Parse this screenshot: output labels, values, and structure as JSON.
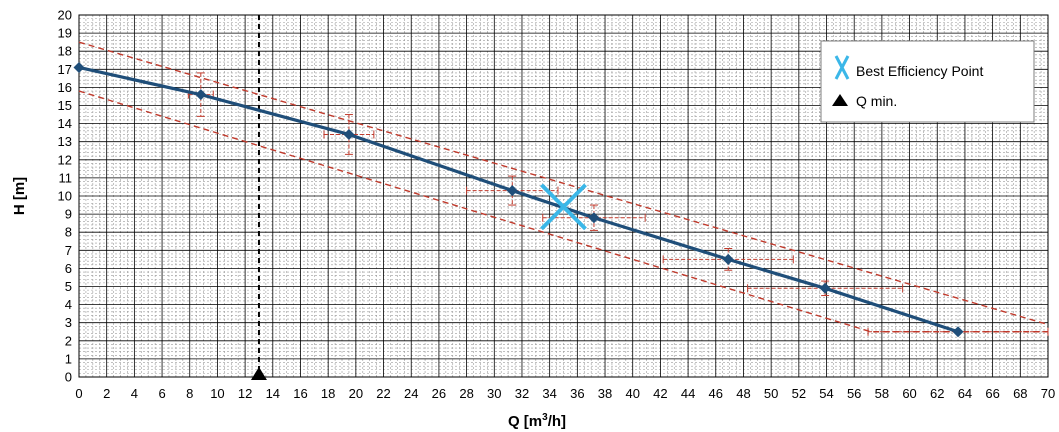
{
  "chart_data": {
    "type": "line",
    "title": "",
    "xlabel": "Q [m",
    "xlabel_sup": "3",
    "xlabel_tail": "/h]",
    "ylabel": "H [m]",
    "xlim": [
      0,
      70
    ],
    "ylim": [
      0,
      20
    ],
    "x_major_step": 2,
    "y_major_step": 1,
    "grid": true,
    "legend_position": "top-right",
    "colors": {
      "curve": "#1f4e79",
      "marker": "#1f4e79",
      "tolerance": "#c0392b",
      "bep": "#3bb7e8",
      "qmin": "#000000",
      "grid_major": "#000000",
      "grid_minor": "#9a9a9a"
    },
    "series": [
      {
        "x": [
          0,
          8.8,
          19.5,
          31.3,
          37.2,
          46.9,
          53.9,
          63.5
        ],
        "y": [
          17.1,
          15.6,
          13.4,
          10.3,
          8.8,
          6.5,
          4.9,
          2.5
        ]
      }
    ],
    "tolerance_upper": {
      "x": [
        0,
        70
      ],
      "y": [
        18.5,
        2.9
      ]
    },
    "tolerance_lower": {
      "x": [
        0,
        57.2,
        70
      ],
      "y": [
        15.8,
        2.5,
        2.5
      ]
    },
    "error_bars": [
      {
        "x": 8.8,
        "y": 15.6,
        "xerr": 0.9,
        "yerr": 1.2
      },
      {
        "x": 19.5,
        "y": 13.4,
        "xerr": 1.8,
        "yerr": 1.1
      },
      {
        "x": 31.3,
        "y": 10.3,
        "xerr": 3.3,
        "yerr": 0.8
      },
      {
        "x": 37.2,
        "y": 8.8,
        "xerr": 3.7,
        "yerr": 0.7
      },
      {
        "x": 46.9,
        "y": 6.5,
        "xerr": 4.7,
        "yerr": 0.6
      },
      {
        "x": 53.9,
        "y": 4.9,
        "xerr": 5.6,
        "yerr": 0.4
      },
      {
        "x": 63.5,
        "y": 2.5,
        "xerr": 6.5,
        "yerr": 0
      }
    ],
    "bep": {
      "x": 35.0,
      "y": 9.4
    },
    "qmin": {
      "x": 13.0
    },
    "legend": [
      {
        "symbol": "bep-x",
        "label": "Best Efficiency Point"
      },
      {
        "symbol": "qmin-triangle",
        "label": "Q min."
      }
    ]
  }
}
